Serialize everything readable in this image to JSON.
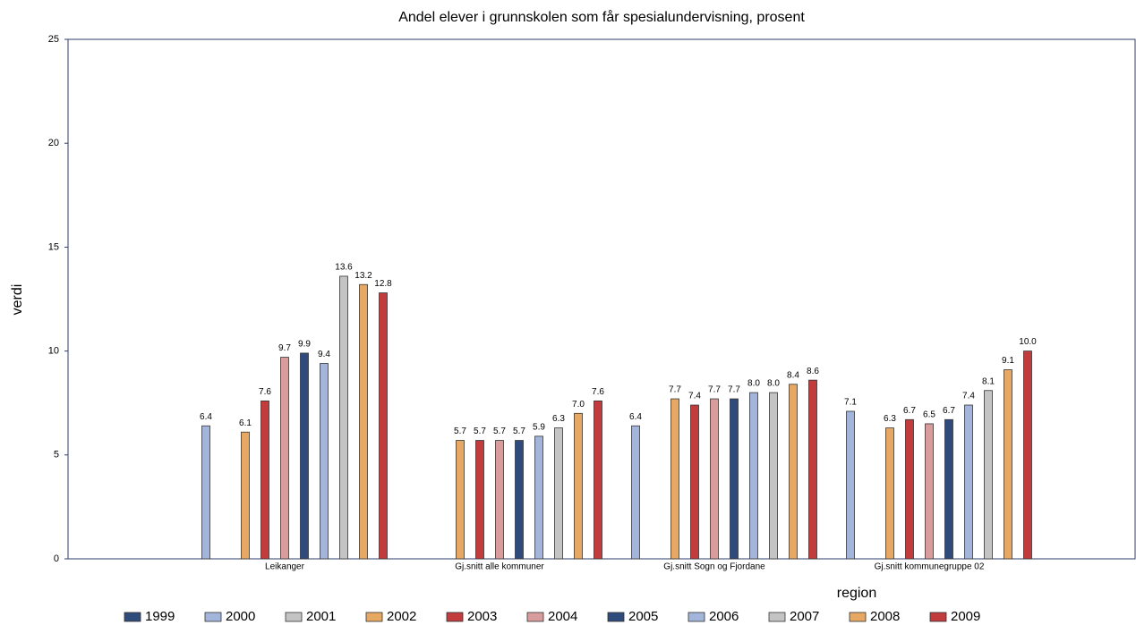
{
  "chart_data": {
    "type": "bar",
    "title": "Andel elever i grunnskolen som får spesialundervisning, prosent",
    "x_label": "region",
    "y_label": "verdi",
    "categories": [
      "Leikanger",
      "Gj.snitt alle kommuner",
      "Gj.snitt Sogn og Fjordane",
      "Gj.snitt kommunegruppe 02"
    ],
    "ylim": [
      0,
      25
    ],
    "yticks": [
      0,
      5,
      10,
      15,
      20,
      25
    ],
    "grid": false,
    "legend": "bottom",
    "series": [
      {
        "name": "1999",
        "color": "#2f4b7c",
        "values": [
          null,
          null,
          null,
          null
        ],
        "value_labels": [
          null,
          null,
          null,
          null
        ]
      },
      {
        "name": "2000",
        "color": "#a3b5da",
        "values": [
          6.4,
          null,
          6.4,
          7.1
        ],
        "value_labels": [
          "6.4",
          null,
          "6.4",
          "7.1"
        ]
      },
      {
        "name": "2001",
        "color": "#c4c4c4",
        "values": [
          null,
          null,
          null,
          null
        ],
        "value_labels": [
          null,
          null,
          null,
          null
        ]
      },
      {
        "name": "2002",
        "color": "#e6a862",
        "values": [
          6.1,
          5.7,
          7.7,
          6.3
        ],
        "value_labels": [
          "6.1",
          "5.7",
          "7.7",
          "6.3"
        ]
      },
      {
        "name": "2003",
        "color": "#c23b3d",
        "values": [
          7.6,
          5.7,
          7.4,
          6.7
        ],
        "value_labels": [
          "7.6",
          "5.7",
          "7.4",
          "6.7"
        ]
      },
      {
        "name": "2004",
        "color": "#d99c9c",
        "values": [
          9.7,
          5.7,
          7.7,
          6.5
        ],
        "value_labels": [
          "9.7",
          "5.7",
          "7.7",
          "6.5"
        ]
      },
      {
        "name": "2005",
        "color": "#2f4b7c",
        "values": [
          9.9,
          5.7,
          7.7,
          6.7
        ],
        "value_labels": [
          "9.9",
          "5.7",
          "7.7",
          "6.7"
        ]
      },
      {
        "name": "2006",
        "color": "#a3b5da",
        "values": [
          9.4,
          5.9,
          8.0,
          7.4
        ],
        "value_labels": [
          "9.4",
          "5.9",
          "8.0",
          "7.4"
        ]
      },
      {
        "name": "2007",
        "color": "#c4c4c4",
        "values": [
          13.6,
          6.3,
          8.0,
          8.1
        ],
        "value_labels": [
          "13.6",
          "6.3",
          "8.0",
          "8.1"
        ]
      },
      {
        "name": "2008",
        "color": "#e6a862",
        "values": [
          13.2,
          7.0,
          8.4,
          9.1
        ],
        "value_labels": [
          "13.2",
          "7.0",
          "8.4",
          "9.1"
        ]
      },
      {
        "name": "2009",
        "color": "#c23b3d",
        "values": [
          12.8,
          7.6,
          8.6,
          10.0
        ],
        "value_labels": [
          "12.8",
          "7.6",
          "8.6",
          "10.0"
        ]
      }
    ]
  }
}
